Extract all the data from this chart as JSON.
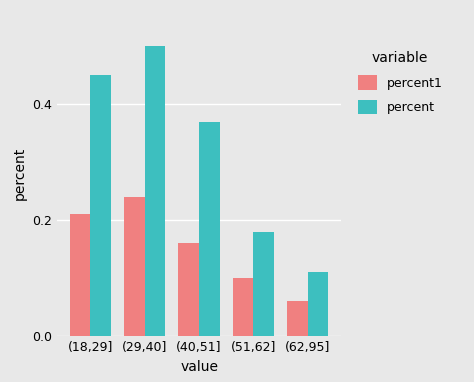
{
  "categories": [
    "(18,29]",
    "(29,40]",
    "(40,51]",
    "(51,62]",
    "(62,95]"
  ],
  "percent1": [
    0.21,
    0.24,
    0.16,
    0.1,
    0.06
  ],
  "percent": [
    0.45,
    0.5,
    0.37,
    0.18,
    0.11
  ],
  "color_percent1": "#F08080",
  "color_percent": "#3DBFBF",
  "xlabel": "value",
  "ylabel": "percent",
  "legend_title": "variable",
  "legend_labels": [
    "percent1",
    "percent"
  ],
  "ylim": [
    0,
    0.56
  ],
  "yticks": [
    0.0,
    0.2,
    0.4
  ],
  "background_color": "#E8E8E8",
  "grid_color": "#FFFFFF",
  "bar_width": 0.38,
  "label_fontsize": 10,
  "tick_fontsize": 9,
  "legend_fontsize": 9
}
